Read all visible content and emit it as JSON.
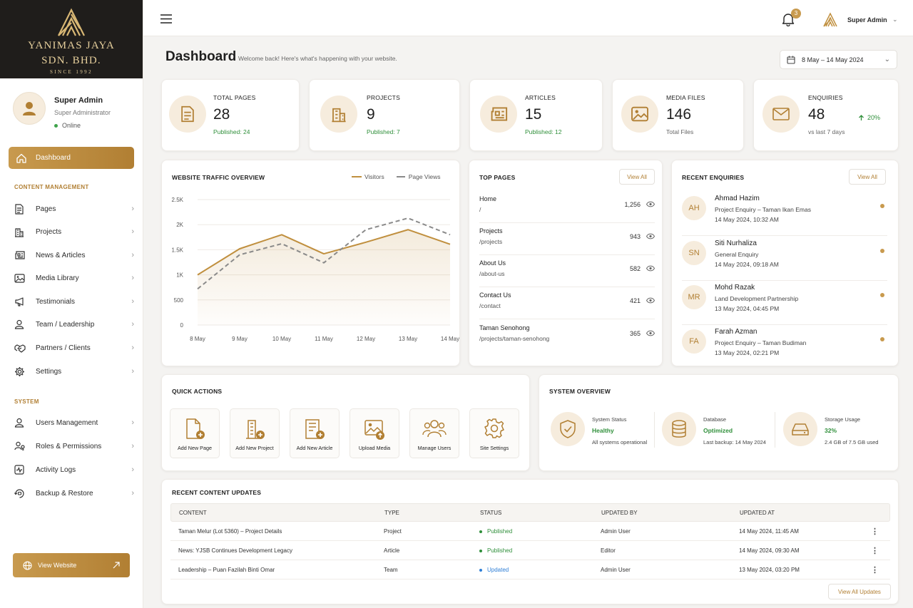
{
  "brand": {
    "line1": "YANIMAS JAYA",
    "line2": "SDN. BHD.",
    "since": "SINCE 1992"
  },
  "profile": {
    "name": "Super Admin",
    "role": "Super Administrator",
    "status": "Online"
  },
  "nav": {
    "dashboard": "Dashboard",
    "section_content": "CONTENT MANAGEMENT",
    "content_items": [
      {
        "label": "Pages",
        "icon": "document-icon"
      },
      {
        "label": "Projects",
        "icon": "building-icon"
      },
      {
        "label": "News & Articles",
        "icon": "newspaper-icon"
      },
      {
        "label": "Media Library",
        "icon": "image-icon"
      },
      {
        "label": "Testimonials",
        "icon": "megaphone-icon"
      },
      {
        "label": "Team / Leadership",
        "icon": "user-icon"
      },
      {
        "label": "Partners / Clients",
        "icon": "handshake-icon"
      },
      {
        "label": "Settings",
        "icon": "gear-icon"
      }
    ],
    "section_system": "SYSTEM",
    "system_items": [
      {
        "label": "Users Management",
        "icon": "user-icon"
      },
      {
        "label": "Roles & Permissions",
        "icon": "users-key-icon"
      },
      {
        "label": "Activity Logs",
        "icon": "activity-icon"
      },
      {
        "label": "Backup & Restore",
        "icon": "backup-icon"
      }
    ],
    "view_website": "View Website"
  },
  "topbar": {
    "notifications": "3",
    "user": "Super Admin"
  },
  "header": {
    "title": "Dashboard",
    "subtitle": "Welcome back! Here's what's happening with your website.",
    "date_range": "8 May – 14 May 2024"
  },
  "stats": [
    {
      "label": "TOTAL PAGES",
      "value": "28",
      "sub": "Published: 24",
      "icon": "document-icon"
    },
    {
      "label": "PROJECTS",
      "value": "9",
      "sub": "Published: 7",
      "icon": "building-icon"
    },
    {
      "label": "ARTICLES",
      "value": "15",
      "sub": "Published: 12",
      "icon": "newspaper-icon"
    },
    {
      "label": "MEDIA FILES",
      "value": "146",
      "sub": "Total Files",
      "icon": "image-icon"
    },
    {
      "label": "ENQUIRIES",
      "value": "48",
      "sub": "vs last 7 days",
      "trend": "20%",
      "icon": "mail-icon"
    }
  ],
  "traffic": {
    "title": "WEBSITE TRAFFIC OVERVIEW"
  },
  "chart_data": {
    "type": "line",
    "title": "WEBSITE TRAFFIC OVERVIEW",
    "x": [
      "8 May",
      "9 May",
      "10 May",
      "11 May",
      "12 May",
      "13 May",
      "14 May"
    ],
    "y_ticks": [
      "0",
      "500",
      "1K",
      "1.5K",
      "2K",
      "2.5K"
    ],
    "ylim": [
      0,
      2500
    ],
    "grid": true,
    "legend": "top-right",
    "series": [
      {
        "name": "Visitors",
        "style": "solid",
        "color": "#c08f3e",
        "values": [
          1000,
          1520,
          1800,
          1420,
          1650,
          1900,
          1610
        ]
      },
      {
        "name": "Page Views",
        "style": "dashed",
        "color": "#8a8a8a",
        "values": [
          720,
          1400,
          1620,
          1240,
          1900,
          2130,
          1800
        ]
      }
    ]
  },
  "top_pages": {
    "title": "TOP PAGES",
    "view_all": "View All",
    "rows": [
      {
        "name": "Home",
        "path": "/",
        "count": "1,256"
      },
      {
        "name": "Projects",
        "path": "/projects",
        "count": "943"
      },
      {
        "name": "About Us",
        "path": "/about-us",
        "count": "582"
      },
      {
        "name": "Contact Us",
        "path": "/contact",
        "count": "421"
      },
      {
        "name": "Taman Senohong",
        "path": "/projects/taman-senohong",
        "count": "365"
      }
    ]
  },
  "enquiries": {
    "title": "RECENT ENQUIRIES",
    "view_all": "View All",
    "rows": [
      {
        "initials": "AH",
        "name": "Ahmad Hazim",
        "topic": "Project Enquiry – Taman Ikan Emas",
        "date": "14 May 2024, 10:32 AM"
      },
      {
        "initials": "SN",
        "name": "Siti Nurhaliza",
        "topic": "General Enquiry",
        "date": "14 May 2024, 09:18 AM"
      },
      {
        "initials": "MR",
        "name": "Mohd Razak",
        "topic": "Land Development Partnership",
        "date": "13 May 2024, 04:45 PM"
      },
      {
        "initials": "FA",
        "name": "Farah Azman",
        "topic": "Project Enquiry – Taman Budiman",
        "date": "13 May 2024, 02:21 PM"
      }
    ]
  },
  "quick_actions": {
    "title": "QUICK ACTIONS",
    "items": [
      {
        "label": "Add New Page",
        "icon": "add-page-icon"
      },
      {
        "label": "Add New Project",
        "icon": "add-project-icon"
      },
      {
        "label": "Add New Article",
        "icon": "add-article-icon"
      },
      {
        "label": "Upload Media",
        "icon": "upload-media-icon"
      },
      {
        "label": "Manage Users",
        "icon": "users-icon"
      },
      {
        "label": "Site Settings",
        "icon": "gear-icon"
      }
    ]
  },
  "system_overview": {
    "title": "SYSTEM OVERVIEW",
    "items": [
      {
        "label": "System Status",
        "value": "Healthy",
        "detail": "All systems operational",
        "icon": "shield-check-icon"
      },
      {
        "label": "Database",
        "value": "Optimized",
        "detail": "Last backup: 14 May 2024",
        "icon": "database-icon"
      },
      {
        "label": "Storage Usage",
        "value": "32%",
        "detail": "2.4 GB of 7.5 GB used",
        "icon": "hard-drive-icon"
      }
    ]
  },
  "updates": {
    "title": "RECENT CONTENT UPDATES",
    "columns": [
      "CONTENT",
      "TYPE",
      "STATUS",
      "UPDATED BY",
      "UPDATED AT"
    ],
    "rows": [
      {
        "content": "Taman Melur (Lot 5360) – Project Details",
        "type": "Project",
        "status": "Published",
        "status_color": "#2f8f3a",
        "by": "Admin User",
        "at": "14 May 2024, 11:45 AM"
      },
      {
        "content": "News: YJSB Continues Development Legacy",
        "type": "Article",
        "status": "Published",
        "status_color": "#2f8f3a",
        "by": "Editor",
        "at": "14 May 2024, 09:30 AM"
      },
      {
        "content": "Leadership – Puan Fazilah Binti Omar",
        "type": "Team",
        "status": "Updated",
        "status_color": "#2f7fd6",
        "by": "Admin User",
        "at": "13 May 2024, 03:20 PM"
      }
    ],
    "view_all": "View All Updates"
  },
  "colors": {
    "accent": "#c08f3e",
    "accent_dark": "#b17f33",
    "success": "#2f8f3a",
    "info": "#2f7fd6",
    "brand_bg": "#1f1d1b"
  }
}
